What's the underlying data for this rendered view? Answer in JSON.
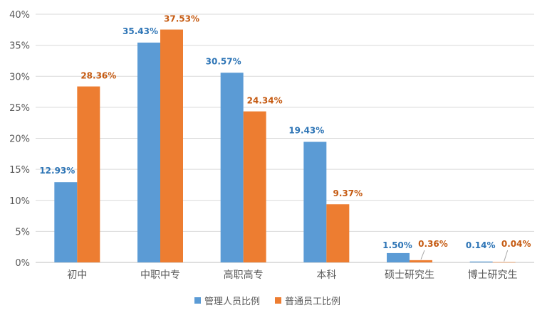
{
  "chart_data": {
    "type": "bar",
    "categories": [
      "初中",
      "中职中专",
      "高职高专",
      "本科",
      "硕士研究生",
      "博士研究生"
    ],
    "series": [
      {
        "name": "管理人员比例",
        "values": [
          12.93,
          35.43,
          30.57,
          19.43,
          1.5,
          0.14
        ],
        "labels": [
          "12.93%",
          "35.43%",
          "30.57%",
          "19.43%",
          "1.50%",
          "0.14%"
        ],
        "color": "#5b9bd5",
        "label_color": "#2e75b6"
      },
      {
        "name": "普通员工比例",
        "values": [
          28.36,
          37.53,
          24.34,
          9.37,
          0.36,
          0.04
        ],
        "labels": [
          "28.36%",
          "37.53%",
          "24.34%",
          "9.37%",
          "0.36%",
          "0.04%"
        ],
        "color": "#ed7d31",
        "label_color": "#c55a11"
      }
    ],
    "y_ticks": [
      "0%",
      "5%",
      "10%",
      "15%",
      "20%",
      "25%",
      "30%",
      "35%",
      "40%"
    ],
    "ylim": [
      0,
      40
    ],
    "grid": true,
    "legend_position": "bottom",
    "gridline_color": "#d9d9d9",
    "axis_color": "#bfbfbf"
  }
}
